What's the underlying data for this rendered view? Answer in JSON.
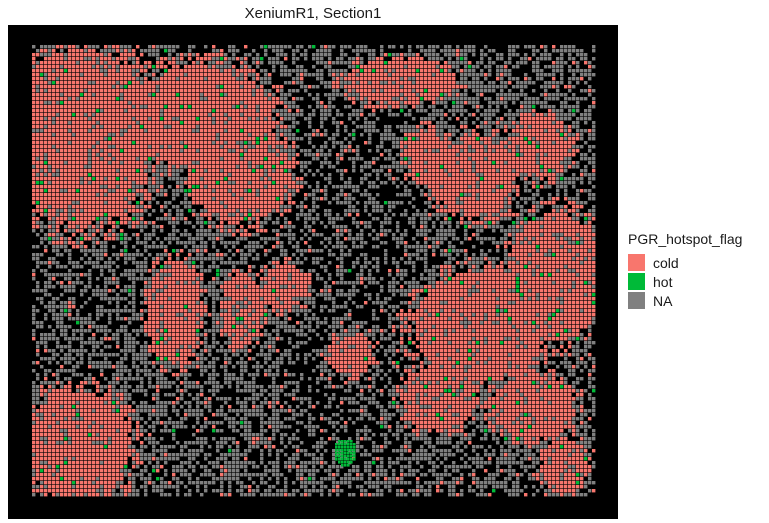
{
  "chart_data": {
    "type": "scatter",
    "title": "XeniumR1, Section1",
    "background": "#000000",
    "legend": {
      "title": "PGR_hotspot_flag",
      "position": "right",
      "entries": [
        {
          "label": "cold",
          "color": "#F8766D"
        },
        {
          "label": "hot",
          "color": "#00BA38"
        },
        {
          "label": "NA",
          "color": "#808080"
        }
      ]
    },
    "grid": false,
    "axes_visible": false
  }
}
